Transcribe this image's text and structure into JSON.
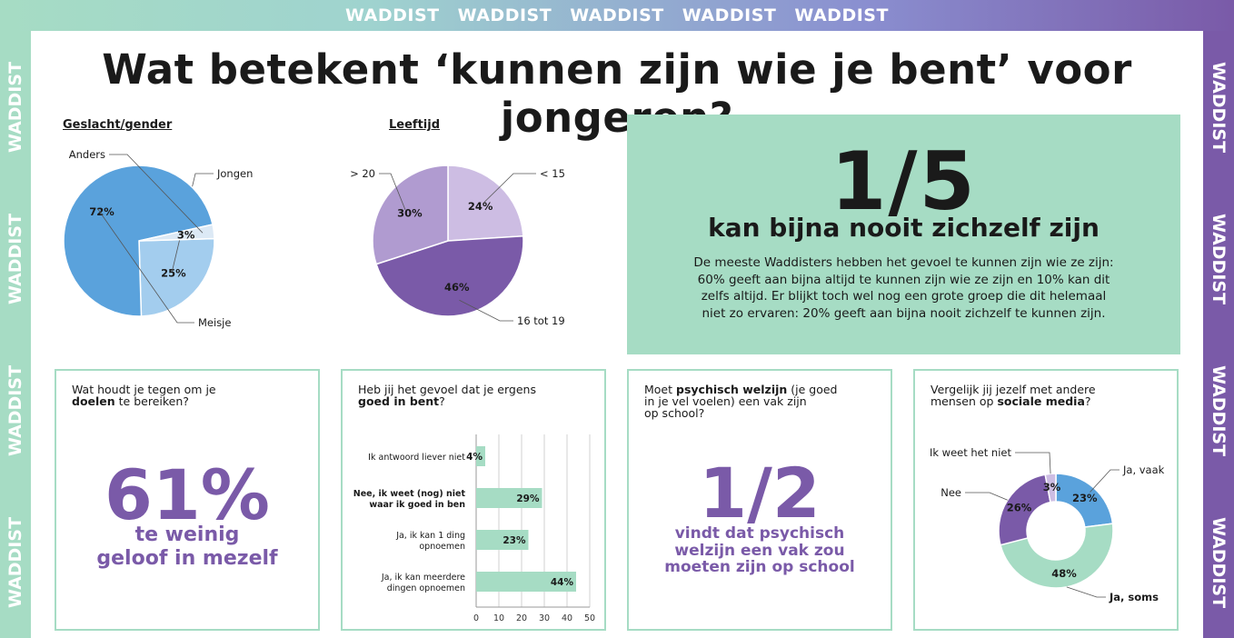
{
  "brand": {
    "word": "WADDIST"
  },
  "title": "Wat betekent ‘kunnen zijn wie je bent’ voor jongeren?",
  "gender": {
    "heading": "Geslacht/gender"
  },
  "age": {
    "heading": "Leeftijd"
  },
  "highlight": {
    "fraction": "1/5",
    "headline": "kan bijna nooit zichzelf zijn",
    "body_lines": [
      "De meeste Waddisters hebben het gevoel te kunnen zijn wie ze zijn:",
      "60% geeft aan bijna altijd te kunnen zijn wie ze zijn en 10% kan dit",
      "zelfs altijd. Er blijkt toch wel nog een grote groep die dit helemaal",
      "niet zo ervaren: 20% geeft aan bijna nooit zichzelf te kunnen zijn."
    ]
  },
  "card1": {
    "q1": "Wat houdt je tegen om je",
    "q2_bold": "doelen",
    "q2_rest": " te bereiken?",
    "stat": "61%",
    "line1": "te weinig",
    "line2": "geloof in mezelf"
  },
  "card2": {
    "q1_a": "Heb  jij het gevoel dat je ergens",
    "q2_bold": "goed in bent",
    "q2_rest": "?"
  },
  "card3": {
    "q1_a": "Moet ",
    "q1_bold": "psychisch welzijn",
    "q1_b": " (je goed",
    "q2": "in je vel voelen) een vak zijn",
    "q3": "op school?",
    "stat": "1/2",
    "line1": "vindt dat psychisch",
    "line2": "welzijn een vak zou",
    "line3": "moeten zijn op school"
  },
  "card4": {
    "q1": "Vergelijk jij jezelf met andere",
    "q2_a": "mensen op ",
    "q2_bold": "sociale media",
    "q2_rest": "?"
  },
  "colors": {
    "mint": "#a6dcc4",
    "purple": "#7a5aa8",
    "blue_dark": "#5aa2dc",
    "blue_light": "#a3cdee",
    "lav_light": "#cdbde3",
    "lav_mid": "#b09bd0"
  },
  "chart_data": [
    {
      "type": "pie",
      "title": "Geslacht/gender",
      "labels": [
        "Jongen",
        "Meisje",
        "Anders"
      ],
      "values": [
        25,
        72,
        3
      ],
      "value_labels": [
        "25%",
        "72%",
        "3%"
      ]
    },
    {
      "type": "pie",
      "title": "Leeftijd",
      "labels": [
        "< 15",
        "16 tot 19",
        "> 20"
      ],
      "values": [
        24,
        46,
        30
      ],
      "value_labels": [
        "24%",
        "46%",
        "30%"
      ]
    },
    {
      "type": "bar",
      "orientation": "horizontal",
      "title": "Heb  jij het gevoel dat je ergens goed in bent?",
      "categories": [
        [
          "Ik antwoord liever niet"
        ],
        [
          "Nee, ik weet (nog) niet",
          "waar ik goed in ben"
        ],
        [
          "Ja, ik kan 1 ding",
          "opnoemen"
        ],
        [
          "Ja, ik kan meerdere",
          "dingen opnoemen"
        ]
      ],
      "values": [
        4,
        29,
        23,
        44
      ],
      "value_labels": [
        "4%",
        "29%",
        "23%",
        "44%"
      ],
      "xlim": [
        0,
        50
      ],
      "xticks": [
        "0",
        "10",
        "20",
        "30",
        "40",
        "50"
      ],
      "grid": true
    },
    {
      "type": "pie",
      "variant": "donut",
      "title": "Vergelijk jij jezelf met andere mensen op sociale media?",
      "labels": [
        "Ja, vaak",
        "Ja, soms",
        "Nee",
        "Ik weet het niet"
      ],
      "values": [
        23,
        48,
        26,
        3
      ],
      "value_labels": [
        "23%",
        "48%",
        "26%",
        "3%"
      ]
    }
  ]
}
